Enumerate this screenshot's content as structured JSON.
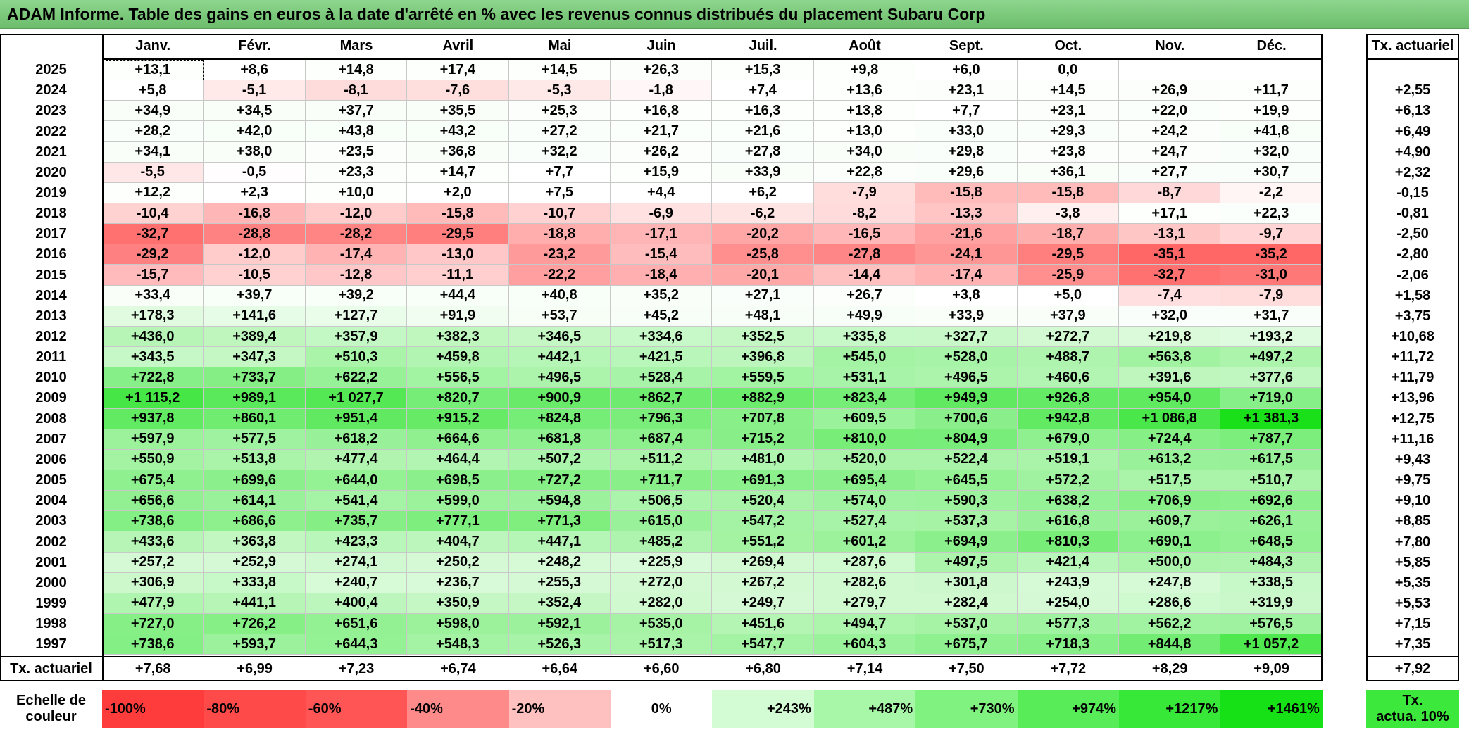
{
  "title": "ADAM Informe. Table des gains en euros à la date d'arrêté en % avec les revenus connus distribués du placement Subaru Corp",
  "months": [
    "Janv.",
    "Févr.",
    "Mars",
    "Avril",
    "Mai",
    "Juin",
    "Juil.",
    "Août",
    "Sept.",
    "Oct.",
    "Nov.",
    "Déc."
  ],
  "rate_header": "Tx. actuariel",
  "rows": [
    {
      "year": "2025",
      "values": [
        "+13,1",
        "+8,6",
        "+14,8",
        "+17,4",
        "+14,5",
        "+26,3",
        "+15,3",
        "+9,8",
        "+6,0",
        "0,0",
        "",
        ""
      ],
      "rate": ""
    },
    {
      "year": "2024",
      "values": [
        "+5,8",
        "-5,1",
        "-8,1",
        "-7,6",
        "-5,3",
        "-1,8",
        "+7,4",
        "+13,6",
        "+23,1",
        "+14,5",
        "+26,9",
        "+11,7"
      ],
      "rate": "+2,55"
    },
    {
      "year": "2023",
      "values": [
        "+34,9",
        "+34,5",
        "+37,7",
        "+35,5",
        "+25,3",
        "+16,8",
        "+16,3",
        "+13,8",
        "+7,7",
        "+23,1",
        "+22,0",
        "+19,9"
      ],
      "rate": "+6,13"
    },
    {
      "year": "2022",
      "values": [
        "+28,2",
        "+42,0",
        "+43,8",
        "+43,2",
        "+27,2",
        "+21,7",
        "+21,6",
        "+13,0",
        "+33,0",
        "+29,3",
        "+24,2",
        "+41,8"
      ],
      "rate": "+6,49"
    },
    {
      "year": "2021",
      "values": [
        "+34,1",
        "+38,0",
        "+23,5",
        "+36,8",
        "+32,2",
        "+26,2",
        "+27,8",
        "+34,0",
        "+29,8",
        "+23,8",
        "+24,7",
        "+32,0"
      ],
      "rate": "+4,90"
    },
    {
      "year": "2020",
      "values": [
        "-5,5",
        "-0,5",
        "+23,3",
        "+14,7",
        "+7,7",
        "+15,9",
        "+33,9",
        "+22,8",
        "+29,6",
        "+36,1",
        "+27,7",
        "+30,7"
      ],
      "rate": "+2,32"
    },
    {
      "year": "2019",
      "values": [
        "+12,2",
        "+2,3",
        "+10,0",
        "+2,0",
        "+7,5",
        "+4,4",
        "+6,2",
        "-7,9",
        "-15,8",
        "-15,8",
        "-8,7",
        "-2,2"
      ],
      "rate": "-0,15"
    },
    {
      "year": "2018",
      "values": [
        "-10,4",
        "-16,8",
        "-12,0",
        "-15,8",
        "-10,7",
        "-6,9",
        "-6,2",
        "-8,2",
        "-13,3",
        "-3,8",
        "+17,1",
        "+22,3"
      ],
      "rate": "-0,81"
    },
    {
      "year": "2017",
      "values": [
        "-32,7",
        "-28,8",
        "-28,2",
        "-29,5",
        "-18,8",
        "-17,1",
        "-20,2",
        "-16,5",
        "-21,6",
        "-18,7",
        "-13,1",
        "-9,7"
      ],
      "rate": "-2,50"
    },
    {
      "year": "2016",
      "values": [
        "-29,2",
        "-12,0",
        "-17,4",
        "-13,0",
        "-23,2",
        "-15,4",
        "-25,8",
        "-27,8",
        "-24,1",
        "-29,5",
        "-35,1",
        "-35,2"
      ],
      "rate": "-2,80"
    },
    {
      "year": "2015",
      "values": [
        "-15,7",
        "-10,5",
        "-12,8",
        "-11,1",
        "-22,2",
        "-18,4",
        "-20,1",
        "-14,4",
        "-17,4",
        "-25,9",
        "-32,7",
        "-31,0"
      ],
      "rate": "-2,06"
    },
    {
      "year": "2014",
      "values": [
        "+33,4",
        "+39,7",
        "+39,2",
        "+44,4",
        "+40,8",
        "+35,2",
        "+27,1",
        "+26,7",
        "+3,8",
        "+5,0",
        "-7,4",
        "-7,9"
      ],
      "rate": "+1,58"
    },
    {
      "year": "2013",
      "values": [
        "+178,3",
        "+141,6",
        "+127,7",
        "+91,9",
        "+53,7",
        "+45,2",
        "+48,1",
        "+49,9",
        "+33,9",
        "+37,9",
        "+32,0",
        "+31,7"
      ],
      "rate": "+3,75"
    },
    {
      "year": "2012",
      "values": [
        "+436,0",
        "+389,4",
        "+357,9",
        "+382,3",
        "+346,5",
        "+334,6",
        "+352,5",
        "+335,8",
        "+327,7",
        "+272,7",
        "+219,8",
        "+193,2"
      ],
      "rate": "+10,68"
    },
    {
      "year": "2011",
      "values": [
        "+343,5",
        "+347,3",
        "+510,3",
        "+459,8",
        "+442,1",
        "+421,5",
        "+396,8",
        "+545,0",
        "+528,0",
        "+488,7",
        "+563,8",
        "+497,2"
      ],
      "rate": "+11,72"
    },
    {
      "year": "2010",
      "values": [
        "+722,8",
        "+733,7",
        "+622,2",
        "+556,5",
        "+496,5",
        "+528,4",
        "+559,5",
        "+531,1",
        "+496,5",
        "+460,6",
        "+391,6",
        "+377,6"
      ],
      "rate": "+11,79"
    },
    {
      "year": "2009",
      "values": [
        "+1 115,2",
        "+989,1",
        "+1 027,7",
        "+820,7",
        "+900,9",
        "+862,7",
        "+882,9",
        "+823,4",
        "+949,9",
        "+926,8",
        "+954,0",
        "+719,0"
      ],
      "rate": "+13,96"
    },
    {
      "year": "2008",
      "values": [
        "+937,8",
        "+860,1",
        "+951,4",
        "+915,2",
        "+824,8",
        "+796,3",
        "+707,8",
        "+609,5",
        "+700,6",
        "+942,8",
        "+1 086,8",
        "+1 381,3"
      ],
      "rate": "+12,75"
    },
    {
      "year": "2007",
      "values": [
        "+597,9",
        "+577,5",
        "+618,2",
        "+664,6",
        "+681,8",
        "+687,4",
        "+715,2",
        "+810,0",
        "+804,9",
        "+679,0",
        "+724,4",
        "+787,7"
      ],
      "rate": "+11,16"
    },
    {
      "year": "2006",
      "values": [
        "+550,9",
        "+513,8",
        "+477,4",
        "+464,4",
        "+507,2",
        "+511,2",
        "+481,0",
        "+520,0",
        "+522,4",
        "+519,1",
        "+613,2",
        "+617,5"
      ],
      "rate": "+9,43"
    },
    {
      "year": "2005",
      "values": [
        "+675,4",
        "+699,6",
        "+644,0",
        "+698,5",
        "+727,2",
        "+711,7",
        "+691,3",
        "+695,4",
        "+645,5",
        "+572,2",
        "+517,5",
        "+510,7"
      ],
      "rate": "+9,75"
    },
    {
      "year": "2004",
      "values": [
        "+656,6",
        "+614,1",
        "+541,4",
        "+599,0",
        "+594,8",
        "+506,5",
        "+520,4",
        "+574,0",
        "+590,3",
        "+638,2",
        "+706,9",
        "+692,6"
      ],
      "rate": "+9,10"
    },
    {
      "year": "2003",
      "values": [
        "+738,6",
        "+686,6",
        "+735,7",
        "+777,1",
        "+771,3",
        "+615,0",
        "+547,2",
        "+527,4",
        "+537,3",
        "+616,8",
        "+609,7",
        "+626,1"
      ],
      "rate": "+8,85"
    },
    {
      "year": "2002",
      "values": [
        "+433,6",
        "+363,8",
        "+423,3",
        "+404,7",
        "+447,1",
        "+485,2",
        "+551,2",
        "+601,2",
        "+694,9",
        "+810,3",
        "+690,1",
        "+648,5"
      ],
      "rate": "+7,80"
    },
    {
      "year": "2001",
      "values": [
        "+257,2",
        "+252,9",
        "+274,1",
        "+250,2",
        "+248,2",
        "+225,9",
        "+269,4",
        "+287,6",
        "+497,5",
        "+421,4",
        "+500,0",
        "+484,3"
      ],
      "rate": "+5,85"
    },
    {
      "year": "2000",
      "values": [
        "+306,9",
        "+333,8",
        "+240,7",
        "+236,7",
        "+255,3",
        "+272,0",
        "+267,2",
        "+282,6",
        "+301,8",
        "+243,9",
        "+247,8",
        "+338,5"
      ],
      "rate": "+5,35"
    },
    {
      "year": "1999",
      "values": [
        "+477,9",
        "+441,1",
        "+400,4",
        "+350,9",
        "+352,4",
        "+282,0",
        "+249,7",
        "+279,7",
        "+282,4",
        "+254,0",
        "+286,6",
        "+319,9"
      ],
      "rate": "+5,53"
    },
    {
      "year": "1998",
      "values": [
        "+727,0",
        "+726,2",
        "+651,6",
        "+598,0",
        "+592,1",
        "+535,0",
        "+451,6",
        "+494,7",
        "+537,0",
        "+577,3",
        "+562,2",
        "+576,5"
      ],
      "rate": "+7,15"
    },
    {
      "year": "1997",
      "values": [
        "+738,6",
        "+593,7",
        "+644,3",
        "+548,3",
        "+526,3",
        "+517,3",
        "+547,7",
        "+604,3",
        "+675,7",
        "+718,3",
        "+844,8",
        "+1 057,2"
      ],
      "rate": "+7,35"
    }
  ],
  "totals": {
    "label": "Tx. actuariel",
    "values": [
      "+7,68",
      "+6,99",
      "+7,23",
      "+6,74",
      "+6,64",
      "+6,60",
      "+6,80",
      "+7,14",
      "+7,50",
      "+7,72",
      "+8,29",
      "+9,09"
    ],
    "overall": "+7,92"
  },
  "scale": {
    "label_line1": "Echelle de",
    "label_line2": "couleur",
    "items": [
      {
        "text": "-100%",
        "color": "#ff3c3c"
      },
      {
        "text": "-80%",
        "color": "#ff4a4a"
      },
      {
        "text": "-60%",
        "color": "#ff5555"
      },
      {
        "text": "-40%",
        "color": "#ff8a8a"
      },
      {
        "text": "-20%",
        "color": "#ffc0c0"
      },
      {
        "text": "0%",
        "color": "#ffffff"
      },
      {
        "text": "+243%",
        "color": "#d4fcd4"
      },
      {
        "text": "+487%",
        "color": "#a8f7a8"
      },
      {
        "text": "+730%",
        "color": "#7ff27f"
      },
      {
        "text": "+974%",
        "color": "#58ec58"
      },
      {
        "text": "+1217%",
        "color": "#38e838"
      },
      {
        "text": "+1461%",
        "color": "#16e016"
      }
    ],
    "rate_box_line1": "Tx.",
    "rate_box_line2": "actua. 10%",
    "rate_box_color": "#3ce83c"
  }
}
